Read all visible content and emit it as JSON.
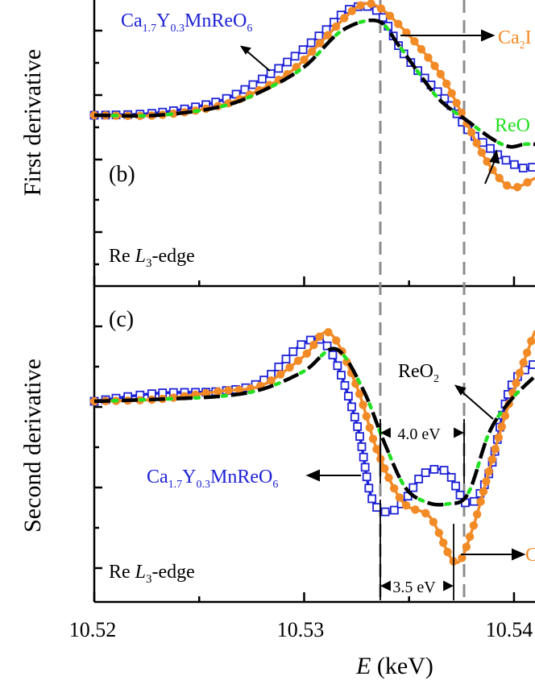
{
  "colors": {
    "blue": "#1e22d6",
    "orange": "#f28a26",
    "green": "#22e022",
    "black": "#000000",
    "gray": "#8c8c8c"
  },
  "axis": {
    "xlabel_italic": "E",
    "xlabel_rest": " (keV)",
    "ticks": [
      "10.52",
      "10.53",
      "10.54"
    ]
  },
  "panels": {
    "b": {
      "ylabel": "First derivative",
      "tag": "(b)",
      "edge_pre": "Re ",
      "edge_italic": "L",
      "edge_sub": "3",
      "edge_post": "-edge",
      "label_blue": {
        "base": [
          "Ca",
          "Y",
          "MnReO"
        ],
        "subs": [
          "1.7",
          "0.3",
          "6"
        ]
      },
      "label_orange": {
        "base": [
          "Ca",
          "I"
        ],
        "subs": [
          "2"
        ]
      },
      "label_green": "ReO"
    },
    "c": {
      "ylabel": "Second derivative",
      "tag": "(c)",
      "edge_pre": "Re ",
      "edge_italic": "L",
      "edge_sub": "3",
      "edge_post": "-edge",
      "label_blue": {
        "base": [
          "Ca",
          "Y",
          "MnReO"
        ],
        "subs": [
          "1.7",
          "0.3",
          "6"
        ]
      },
      "label_reo2": {
        "base": [
          "ReO"
        ],
        "subs": [
          "2"
        ]
      },
      "label_orange": "C",
      "gap1": "4.0 eV",
      "gap2": "3.5 eV"
    }
  },
  "chart_data": [
    {
      "type": "line",
      "panel": "b",
      "xlim": [
        10.52,
        10.541
      ],
      "xlabel": "E (keV)",
      "ylabel": "First derivative",
      "vlines_keV": [
        10.534,
        10.538
      ],
      "series": [
        {
          "name": "Ca1.7Y0.3MnReO6",
          "color": "blue",
          "marker": "open-square",
          "x": [
            10.52,
            10.523,
            10.526,
            10.528,
            10.5295,
            10.531,
            10.5322,
            10.5335,
            10.5347,
            10.536,
            10.537,
            10.5378,
            10.5387,
            10.5395,
            10.5405,
            10.541
          ],
          "y": [
            0.08,
            0.1,
            0.2,
            0.38,
            0.56,
            0.78,
            0.96,
            0.94,
            0.6,
            0.34,
            0.16,
            -0.04,
            -0.17,
            -0.28,
            -0.36,
            -0.34
          ]
        },
        {
          "name": "Ca2I",
          "color": "orange",
          "marker": "filled-circle",
          "x": [
            10.52,
            10.523,
            10.526,
            10.528,
            10.5295,
            10.531,
            10.5325,
            10.5335,
            10.535,
            10.5365,
            10.5375,
            10.5385,
            10.5393,
            10.54,
            10.541
          ],
          "y": [
            0.08,
            0.08,
            0.16,
            0.3,
            0.46,
            0.72,
            0.97,
            0.98,
            0.74,
            0.42,
            0.1,
            -0.24,
            -0.44,
            -0.52,
            -0.44
          ]
        },
        {
          "name": "ReO",
          "color": "black-green-dash",
          "marker": "none",
          "x": [
            10.52,
            10.523,
            10.526,
            10.528,
            10.53,
            10.5318,
            10.5335,
            10.5345,
            10.5355,
            10.5365,
            10.5378,
            10.539,
            10.5398,
            10.5405,
            10.541
          ],
          "y": [
            0.08,
            0.08,
            0.15,
            0.28,
            0.48,
            0.78,
            0.86,
            0.66,
            0.42,
            0.2,
            0.03,
            -0.12,
            -0.18,
            -0.16,
            -0.16
          ]
        }
      ]
    },
    {
      "type": "line",
      "panel": "c",
      "xlim": [
        10.52,
        10.541
      ],
      "xlabel": "E (keV)",
      "ylabel": "Second derivative",
      "vlines_keV": [
        10.534,
        10.538
      ],
      "series": [
        {
          "name": "Ca1.7Y0.3MnReO6",
          "color": "blue",
          "marker": "open-square",
          "x": [
            10.52,
            10.523,
            10.526,
            10.528,
            10.53,
            10.5312,
            10.5325,
            10.5332,
            10.534,
            10.5348,
            10.5357,
            10.5368,
            10.5378,
            10.5388,
            10.5398,
            10.541
          ],
          "y": [
            0.0,
            0.08,
            0.1,
            0.2,
            0.58,
            0.52,
            -0.22,
            -0.95,
            -1.1,
            -0.98,
            -0.72,
            -0.7,
            -1.02,
            -0.72,
            0.12,
            0.38
          ]
        },
        {
          "name": "Ca2...",
          "color": "orange",
          "marker": "filled-circle",
          "x": [
            10.52,
            10.523,
            10.526,
            10.528,
            10.53,
            10.5312,
            10.5325,
            10.5335,
            10.5347,
            10.536,
            10.5372,
            10.538,
            10.539,
            10.5398,
            10.541
          ],
          "y": [
            0.0,
            0.02,
            0.1,
            0.16,
            0.45,
            0.68,
            0.15,
            -0.5,
            -1.0,
            -1.15,
            -1.6,
            -1.28,
            -0.55,
            0.0,
            0.7
          ]
        },
        {
          "name": "ReO2",
          "color": "black-green-dash",
          "marker": "none",
          "x": [
            10.52,
            10.523,
            10.526,
            10.528,
            10.53,
            10.5315,
            10.5328,
            10.5338,
            10.5348,
            10.5358,
            10.5368,
            10.5378,
            10.5388,
            10.5398,
            10.541
          ],
          "y": [
            0.0,
            0.02,
            0.05,
            0.12,
            0.3,
            0.52,
            0.12,
            -0.4,
            -0.85,
            -1.0,
            -1.02,
            -0.92,
            -0.32,
            0.0,
            0.25
          ]
        }
      ]
    }
  ]
}
